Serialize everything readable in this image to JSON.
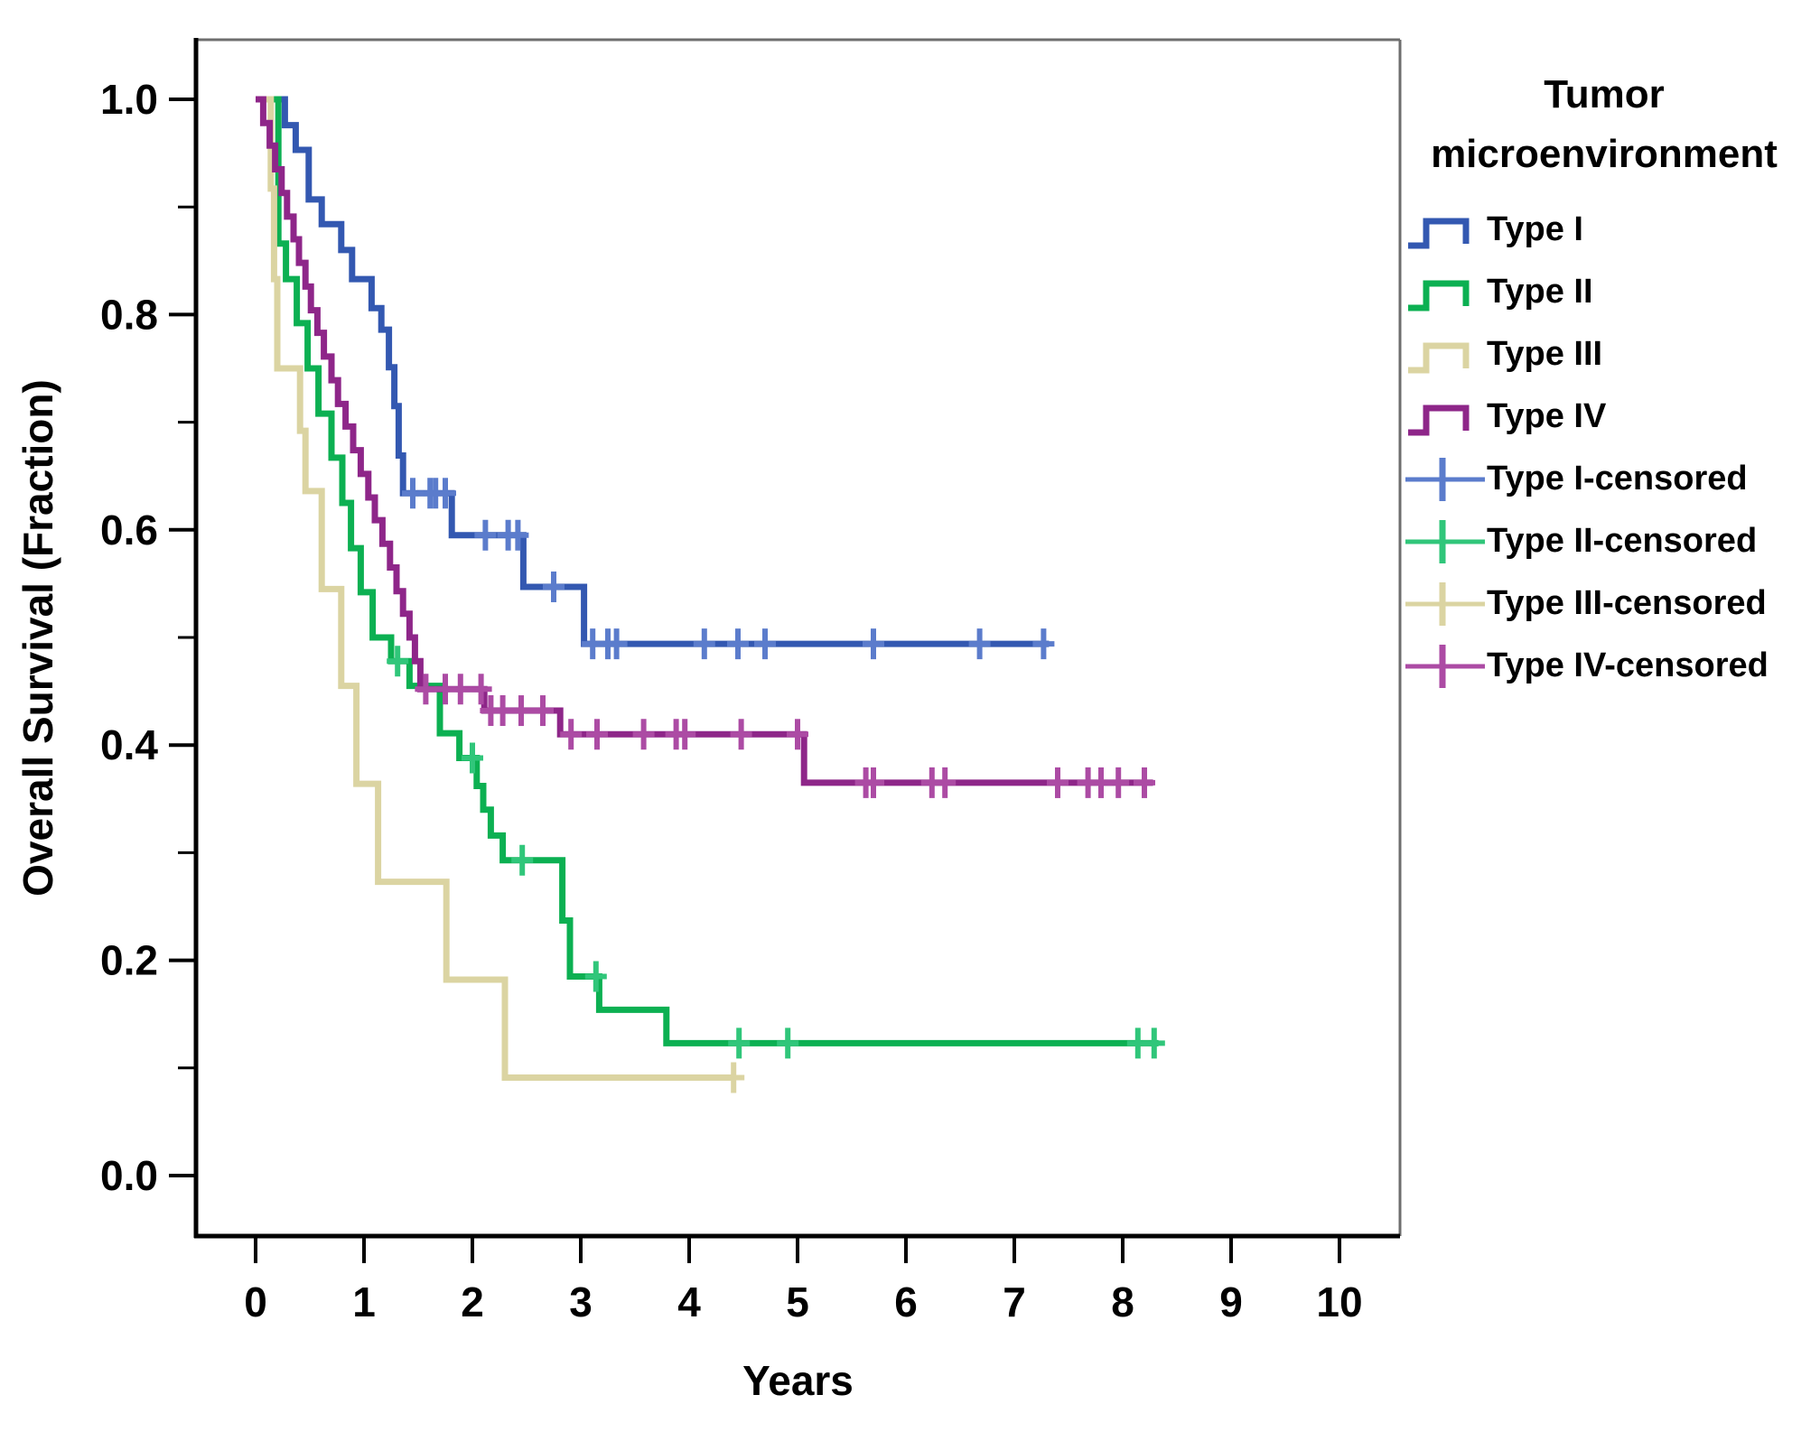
{
  "figure": {
    "kind": "Kaplan-Meier overall survival plot",
    "background": "#ffffff"
  },
  "y_axis": {
    "title": "Overall Survival (Fraction)",
    "tick_labels": [
      "1.0",
      "0.8",
      "0.6",
      "0.4",
      "0.2",
      "0.0"
    ],
    "tick_values": [
      1.0,
      0.8,
      0.6,
      0.4,
      0.2,
      0.0
    ],
    "minor_tick_values": [
      0.9,
      0.7,
      0.5,
      0.3,
      0.1
    ],
    "range": [
      0.0,
      1.0
    ]
  },
  "x_axis": {
    "title": "Years",
    "tick_labels": [
      "0",
      "1",
      "2",
      "3",
      "4",
      "5",
      "6",
      "7",
      "8",
      "9",
      "10"
    ],
    "tick_values": [
      0,
      1,
      2,
      3,
      4,
      5,
      6,
      7,
      8,
      9,
      10
    ],
    "range": [
      0,
      10
    ]
  },
  "legend": {
    "title_lines": [
      "Tumor",
      "microenvironment"
    ],
    "items": [
      {
        "label": "Type I",
        "kind": "line",
        "color": "#3358B1"
      },
      {
        "label": "Type II",
        "kind": "line",
        "color": "#0CB052"
      },
      {
        "label": "Type III",
        "kind": "line",
        "color": "#DBD4A2"
      },
      {
        "label": "Type IV",
        "kind": "line",
        "color": "#8E2689"
      },
      {
        "label": "Type I-censored",
        "kind": "censored",
        "color": "#5B7CCC"
      },
      {
        "label": "Type II-censored",
        "kind": "censored",
        "color": "#30C67A"
      },
      {
        "label": "Type III-censored",
        "kind": "censored",
        "color": "#DBD4A2"
      },
      {
        "label": "Type IV-censored",
        "kind": "censored",
        "color": "#AC4BA4"
      }
    ]
  },
  "chart_data": {
    "type": "line",
    "subtype": "kaplan-meier-step",
    "title": "",
    "xlabel": "Years",
    "ylabel": "Overall Survival (Fraction)",
    "xlim": [
      0,
      10
    ],
    "ylim": [
      0.0,
      1.0
    ],
    "grid": false,
    "legend_position": "right",
    "series": [
      {
        "id": "type-i",
        "name": "Type I",
        "color": "#3358B1",
        "censor_color": "#5B7CCC",
        "start": [
          0,
          1.0
        ],
        "steps": [
          [
            0.27,
            0.976
          ],
          [
            0.37,
            0.953
          ],
          [
            0.49,
            0.907
          ],
          [
            0.61,
            0.884
          ],
          [
            0.79,
            0.86
          ],
          [
            0.89,
            0.833
          ],
          [
            1.07,
            0.806
          ],
          [
            1.16,
            0.786
          ],
          [
            1.23,
            0.751
          ],
          [
            1.28,
            0.715
          ],
          [
            1.32,
            0.669
          ],
          [
            1.36,
            0.634
          ],
          [
            1.81,
            0.595
          ],
          [
            2.47,
            0.547
          ],
          [
            3.03,
            0.494
          ]
        ],
        "end_time": 7.32,
        "censors": [
          [
            1.45,
            0.634
          ],
          [
            1.61,
            0.634
          ],
          [
            1.66,
            0.634
          ],
          [
            1.75,
            0.634
          ],
          [
            2.12,
            0.595
          ],
          [
            2.33,
            0.595
          ],
          [
            2.42,
            0.595
          ],
          [
            2.75,
            0.547
          ],
          [
            3.11,
            0.494
          ],
          [
            3.25,
            0.494
          ],
          [
            3.33,
            0.494
          ],
          [
            4.14,
            0.494
          ],
          [
            4.45,
            0.494
          ],
          [
            4.7,
            0.494
          ],
          [
            5.7,
            0.494
          ],
          [
            6.68,
            0.494
          ],
          [
            7.27,
            0.494
          ]
        ]
      },
      {
        "id": "type-ii",
        "name": "Type II",
        "color": "#0CB052",
        "censor_color": "#30C67A",
        "start": [
          0,
          1.0
        ],
        "steps": [
          [
            0.21,
            0.866
          ],
          [
            0.28,
            0.833
          ],
          [
            0.38,
            0.792
          ],
          [
            0.48,
            0.75
          ],
          [
            0.58,
            0.708
          ],
          [
            0.7,
            0.667
          ],
          [
            0.8,
            0.625
          ],
          [
            0.88,
            0.583
          ],
          [
            0.97,
            0.542
          ],
          [
            1.08,
            0.5
          ],
          [
            1.25,
            0.478
          ],
          [
            1.42,
            0.455
          ],
          [
            1.7,
            0.411
          ],
          [
            1.88,
            0.388
          ],
          [
            2.04,
            0.362
          ],
          [
            2.1,
            0.34
          ],
          [
            2.17,
            0.316
          ],
          [
            2.28,
            0.293
          ],
          [
            2.83,
            0.237
          ],
          [
            2.9,
            0.185
          ],
          [
            3.17,
            0.154
          ],
          [
            3.79,
            0.123
          ]
        ],
        "end_time": 8.33,
        "censors": [
          [
            1.31,
            0.478
          ],
          [
            2.0,
            0.388
          ],
          [
            2.46,
            0.293
          ],
          [
            3.14,
            0.185
          ],
          [
            4.46,
            0.123
          ],
          [
            4.91,
            0.123
          ],
          [
            8.14,
            0.123
          ],
          [
            8.29,
            0.123
          ]
        ]
      },
      {
        "id": "type-iii",
        "name": "Type III",
        "color": "#DBD4A2",
        "censor_color": "#DBD4A2",
        "start": [
          0,
          1.0
        ],
        "steps": [
          [
            0.14,
            0.917
          ],
          [
            0.17,
            0.833
          ],
          [
            0.2,
            0.75
          ],
          [
            0.41,
            0.692
          ],
          [
            0.46,
            0.636
          ],
          [
            0.61,
            0.545
          ],
          [
            0.79,
            0.455
          ],
          [
            0.93,
            0.364
          ],
          [
            1.13,
            0.273
          ],
          [
            1.76,
            0.182
          ],
          [
            2.3,
            0.091
          ]
        ],
        "end_time": 4.41,
        "censors": [
          [
            4.41,
            0.091
          ]
        ]
      },
      {
        "id": "type-iv",
        "name": "Type IV",
        "color": "#8E2689",
        "censor_color": "#AC4BA4",
        "start": [
          0,
          1.0
        ],
        "steps": [
          [
            0.07,
            0.978
          ],
          [
            0.13,
            0.957
          ],
          [
            0.18,
            0.935
          ],
          [
            0.24,
            0.913
          ],
          [
            0.29,
            0.891
          ],
          [
            0.35,
            0.87
          ],
          [
            0.4,
            0.848
          ],
          [
            0.46,
            0.826
          ],
          [
            0.51,
            0.804
          ],
          [
            0.57,
            0.783
          ],
          [
            0.63,
            0.761
          ],
          [
            0.7,
            0.739
          ],
          [
            0.76,
            0.717
          ],
          [
            0.83,
            0.696
          ],
          [
            0.9,
            0.674
          ],
          [
            0.97,
            0.652
          ],
          [
            1.04,
            0.63
          ],
          [
            1.1,
            0.609
          ],
          [
            1.17,
            0.587
          ],
          [
            1.24,
            0.565
          ],
          [
            1.3,
            0.543
          ],
          [
            1.36,
            0.522
          ],
          [
            1.42,
            0.5
          ],
          [
            1.47,
            0.478
          ],
          [
            1.52,
            0.452
          ],
          [
            2.11,
            0.432
          ],
          [
            2.81,
            0.41
          ],
          [
            5.06,
            0.365
          ]
        ],
        "end_time": 8.28,
        "censors": [
          [
            1.57,
            0.452
          ],
          [
            1.75,
            0.452
          ],
          [
            1.89,
            0.452
          ],
          [
            2.08,
            0.452
          ],
          [
            2.17,
            0.432
          ],
          [
            2.28,
            0.432
          ],
          [
            2.45,
            0.432
          ],
          [
            2.65,
            0.432
          ],
          [
            2.91,
            0.41
          ],
          [
            3.15,
            0.41
          ],
          [
            3.58,
            0.41
          ],
          [
            3.88,
            0.41
          ],
          [
            3.96,
            0.41
          ],
          [
            4.48,
            0.41
          ],
          [
            5.0,
            0.41
          ],
          [
            5.63,
            0.365
          ],
          [
            5.7,
            0.365
          ],
          [
            6.24,
            0.365
          ],
          [
            6.36,
            0.365
          ],
          [
            7.4,
            0.365
          ],
          [
            7.68,
            0.365
          ],
          [
            7.8,
            0.365
          ],
          [
            7.96,
            0.365
          ],
          [
            8.2,
            0.365
          ]
        ]
      }
    ]
  }
}
